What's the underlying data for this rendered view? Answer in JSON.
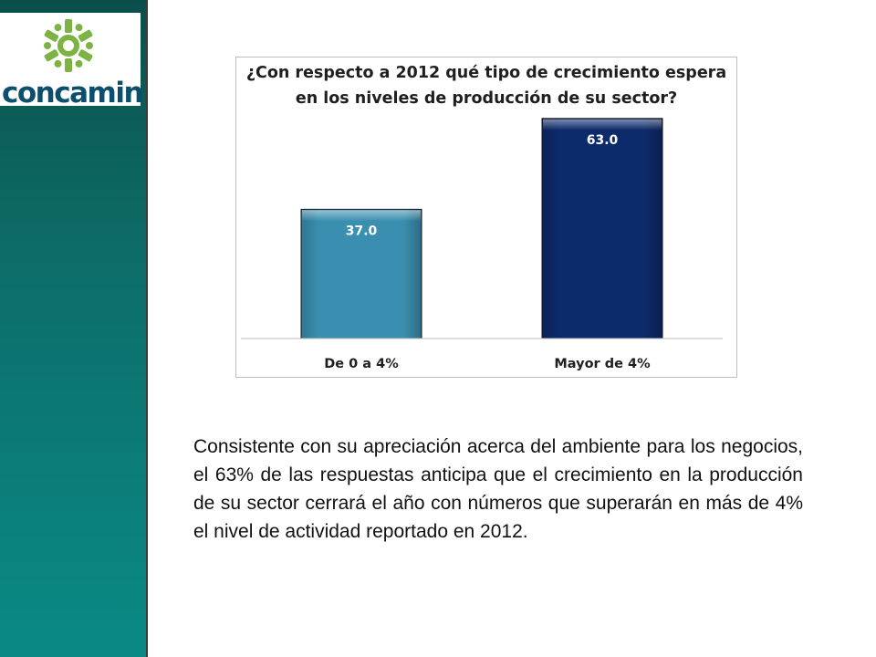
{
  "brand": {
    "logo_text": "concamin",
    "logo_icon": "gear-star-icon",
    "colors": {
      "green": "#7cb342",
      "navy": "#0b4f6c",
      "teal": "#0d6a66"
    }
  },
  "chart_data": {
    "type": "bar",
    "title": "¿Con respecto a 2012 qué tipo de crecimiento espera en los niveles de producción de su sector?",
    "categories": [
      "De 0 a 4%",
      "Mayor de 4%"
    ],
    "values": [
      37.0,
      63.0
    ],
    "data_labels": [
      "37.0",
      "63.0"
    ],
    "bar_colors": [
      "#3a8fb0",
      "#0d2a6b"
    ],
    "ylim": [
      0,
      70
    ],
    "grid": false,
    "legend": "none",
    "xlabel": "",
    "ylabel": ""
  },
  "summary": {
    "text": "Consistente con su apreciación acerca del ambiente para los negocios, el 63% de las respuestas anticipa que el crecimiento en la producción de su sector cerrará el año con números que superarán en más de 4% el nivel de actividad reportado en 2012."
  }
}
